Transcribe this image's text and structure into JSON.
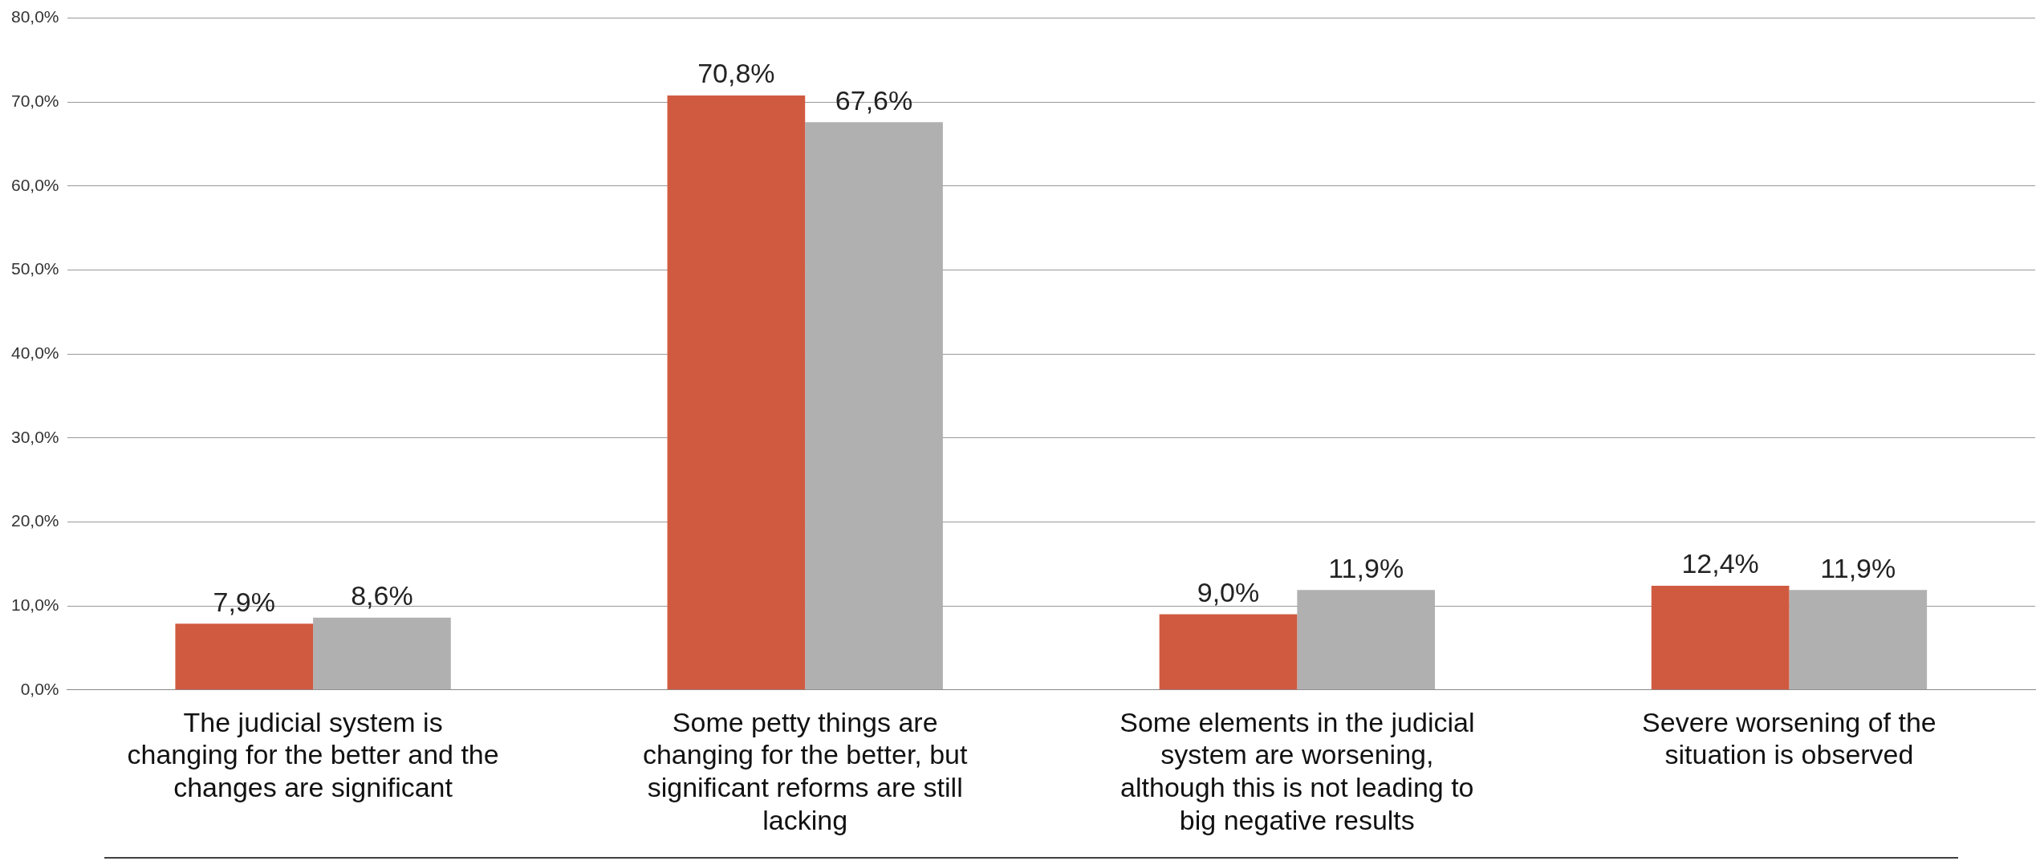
{
  "chart_data": {
    "type": "bar",
    "categories": [
      "The judicial system is changing for the better and the changes are significant",
      "Some petty things are changing for the better, but significant reforms are still lacking",
      "Some elements in the judicial system are worsening, although this is not leading to big negative results",
      "Severe worsening of the situation is observed"
    ],
    "series": [
      {
        "color": "#d05a40",
        "values": [
          7.9,
          70.8,
          9.0,
          12.4
        ],
        "value_labels": [
          "7,9%",
          "70,8%",
          "9,0%",
          "12,4%"
        ]
      },
      {
        "color": "#b0b0b0",
        "values": [
          8.6,
          67.6,
          11.9,
          11.9
        ],
        "value_labels": [
          "8,6%",
          "67,6%",
          "11,9%",
          "11,9%"
        ]
      }
    ],
    "ylim": [
      0,
      80
    ],
    "yticks": [
      {
        "value": 0,
        "label": "0,0%"
      },
      {
        "value": 10,
        "label": "10,0%"
      },
      {
        "value": 20,
        "label": "20,0%"
      },
      {
        "value": 30,
        "label": "30,0%"
      },
      {
        "value": 40,
        "label": "40,0%"
      },
      {
        "value": 50,
        "label": "50,0%"
      },
      {
        "value": 60,
        "label": "60,0%"
      },
      {
        "value": 70,
        "label": "70,0%"
      },
      {
        "value": 80,
        "label": "80,0%"
      }
    ],
    "grid": "y",
    "legend": false
  }
}
